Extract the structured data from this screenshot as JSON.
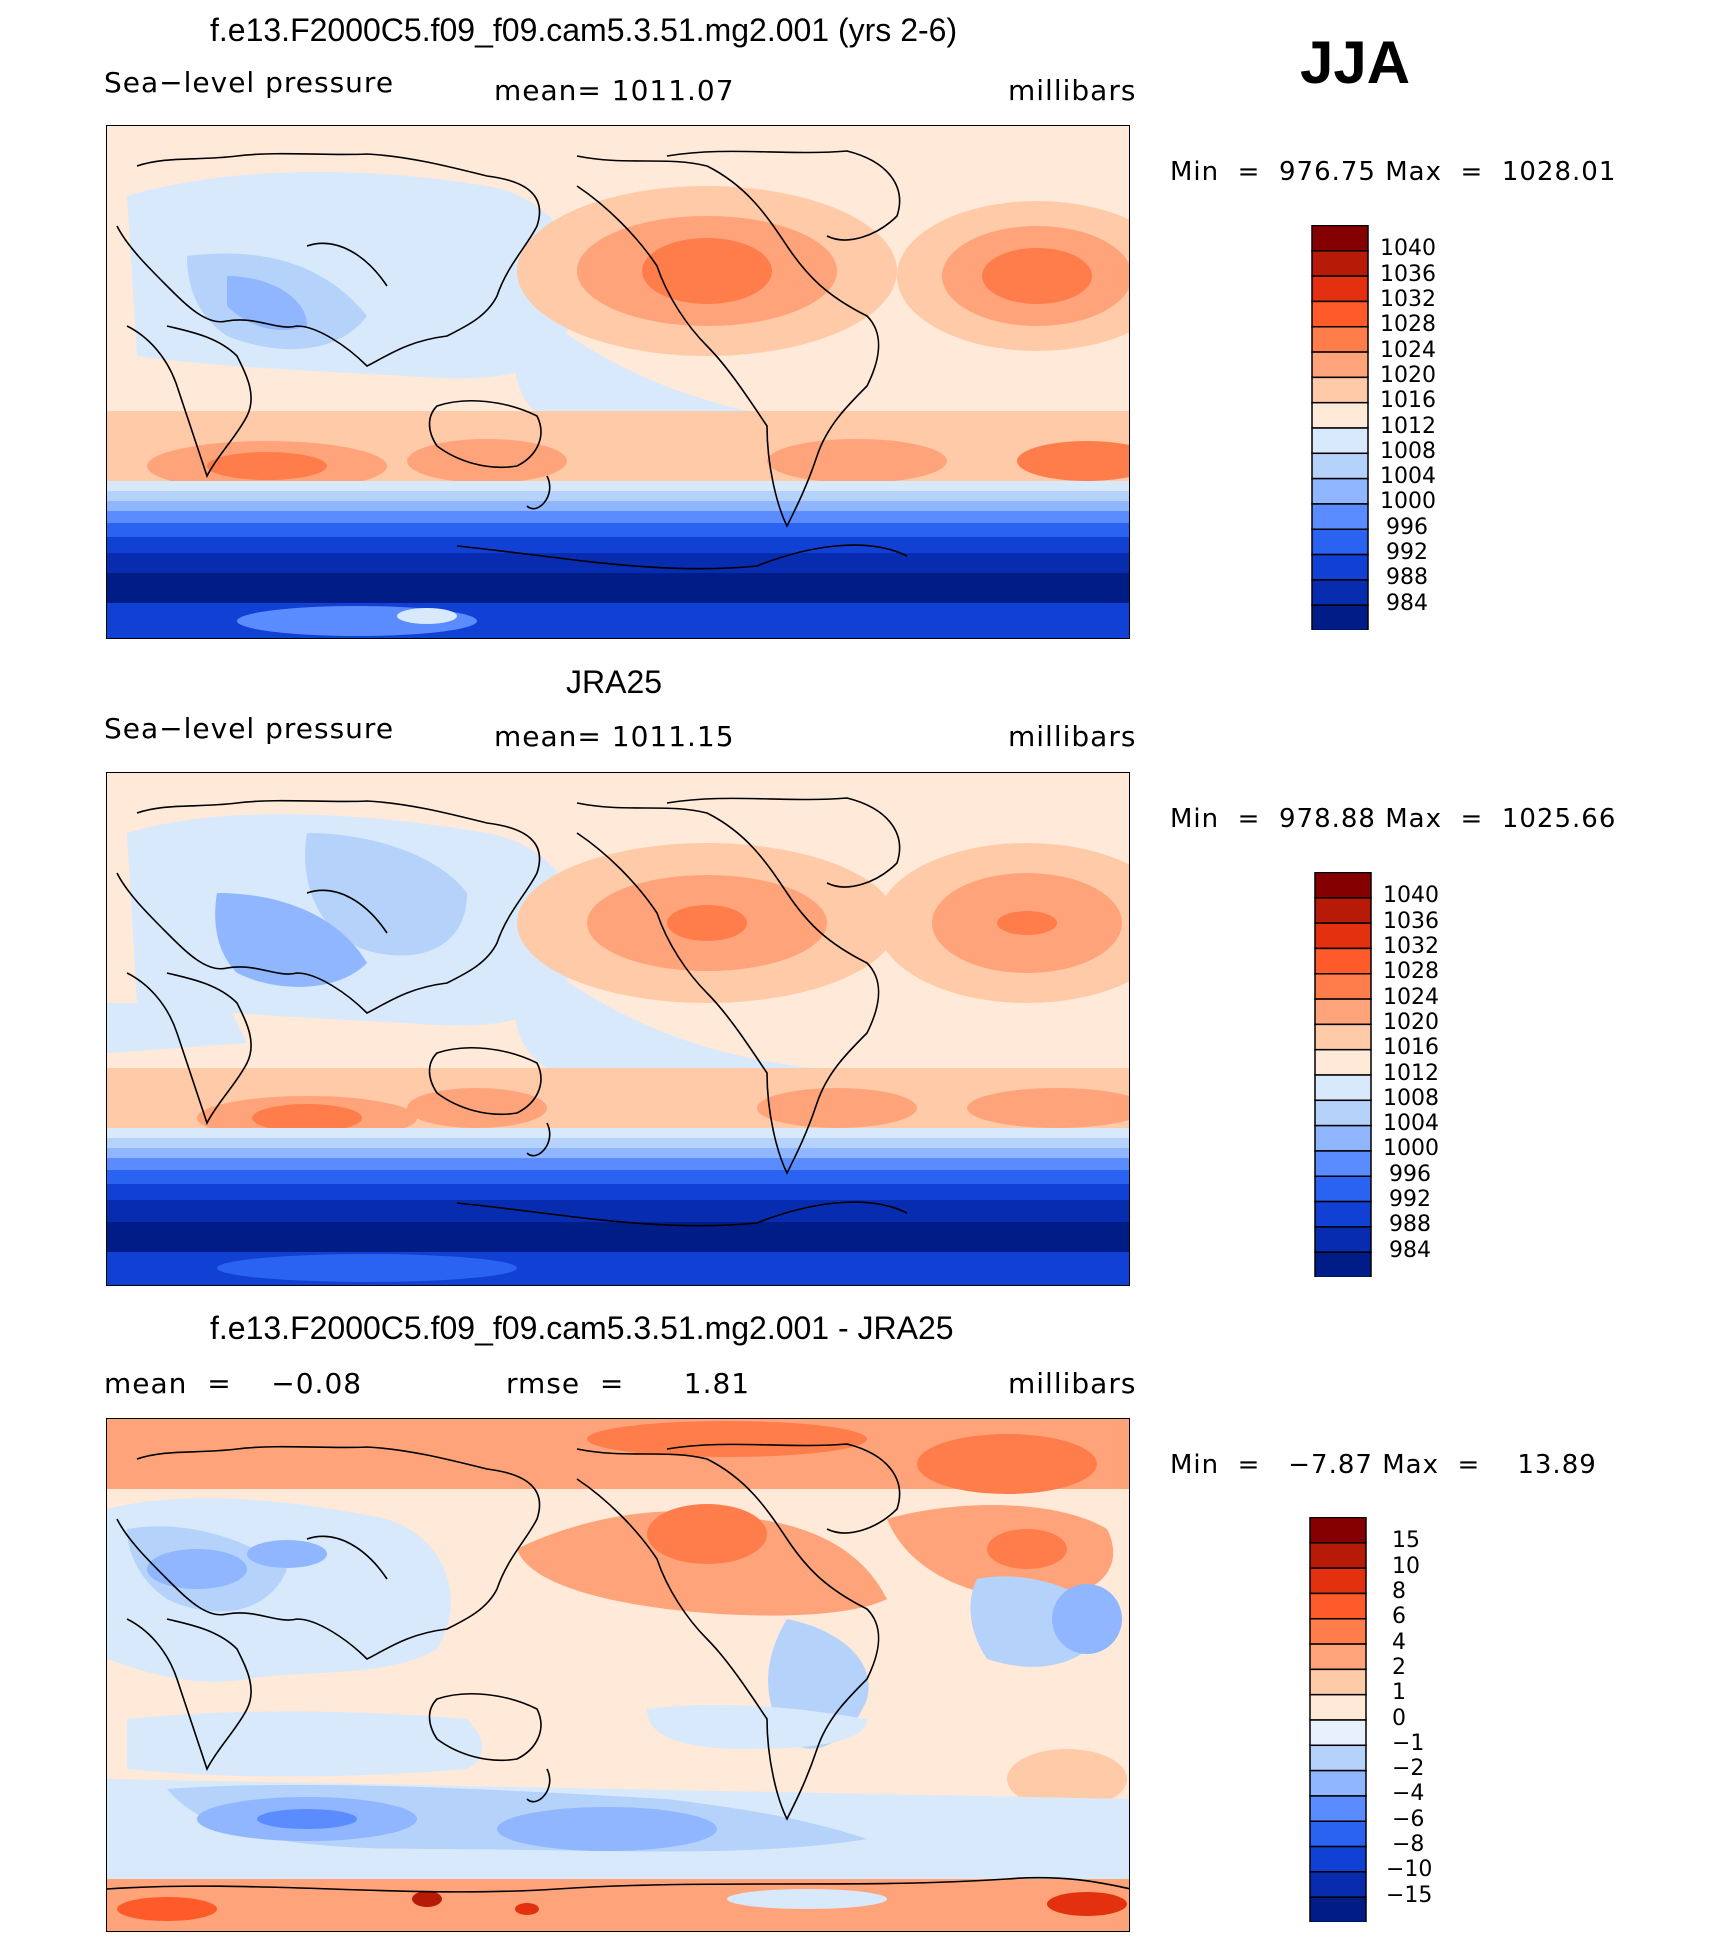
{
  "season": "JJA",
  "panels": [
    {
      "title": "f.e13.F2000C5.f09_f09.cam5.3.51.mg2.001 (yrs 2-6)",
      "left_label": "Sea−level pressure",
      "center_label": "mean=  1011.07",
      "units": "millibars",
      "min_label": "Min",
      "min": "976.75",
      "max_label": "Max",
      "max": "1028.01",
      "colorbar_levels": [
        "1040",
        "1036",
        "1032",
        "1028",
        "1024",
        "1020",
        "1016",
        "1012",
        "1008",
        "1004",
        "1000",
        "996",
        "992",
        "988",
        "984"
      ],
      "colorbar_colors": [
        "#850000",
        "#b71b07",
        "#e3300f",
        "#ff5a2a",
        "#ff7c4b",
        "#ffa47a",
        "#ffcaa8",
        "#ffe9d8",
        "#d8e9fc",
        "#b5d2fb",
        "#8fb6ff",
        "#5a8cff",
        "#2a63f2",
        "#1140d5",
        "#072cb0",
        "#001c86"
      ]
    },
    {
      "title": "JRA25",
      "left_label": "Sea−level pressure",
      "center_label": "mean=  1011.15",
      "units": "millibars",
      "min_label": "Min",
      "min": "978.88",
      "max_label": "Max",
      "max": "1025.66",
      "colorbar_levels": [
        "1040",
        "1036",
        "1032",
        "1028",
        "1024",
        "1020",
        "1016",
        "1012",
        "1008",
        "1004",
        "1000",
        "996",
        "992",
        "988",
        "984"
      ],
      "colorbar_colors": [
        "#850000",
        "#b71b07",
        "#e3300f",
        "#ff5a2a",
        "#ff7c4b",
        "#ffa47a",
        "#ffcaa8",
        "#ffe9d8",
        "#d8e9fc",
        "#b5d2fb",
        "#8fb6ff",
        "#5a8cff",
        "#2a63f2",
        "#1140d5",
        "#072cb0",
        "#001c86"
      ]
    },
    {
      "title": "f.e13.F2000C5.f09_f09.cam5.3.51.mg2.001 - JRA25",
      "left_label": "mean  =    −0.08",
      "center_label": "rmse  =      1.81",
      "units": "millibars",
      "min_label": "Min",
      "min": "−7.87",
      "max_label": "Max",
      "max": "13.89",
      "colorbar_levels": [
        "15",
        "10",
        "8",
        "6",
        "4",
        "2",
        "1",
        "0",
        "−1",
        "−2",
        "−4",
        "−6",
        "−8",
        "−10",
        "−15"
      ],
      "colorbar_colors": [
        "#850000",
        "#b71b07",
        "#e3300f",
        "#ff5a2a",
        "#ff7c4b",
        "#ffa47a",
        "#ffcaa8",
        "#ffe9d8",
        "#e8f1fb",
        "#b5d2fb",
        "#8fb6ff",
        "#5a8cff",
        "#2a63f2",
        "#1140d5",
        "#072cb0",
        "#001c86"
      ]
    }
  ]
}
